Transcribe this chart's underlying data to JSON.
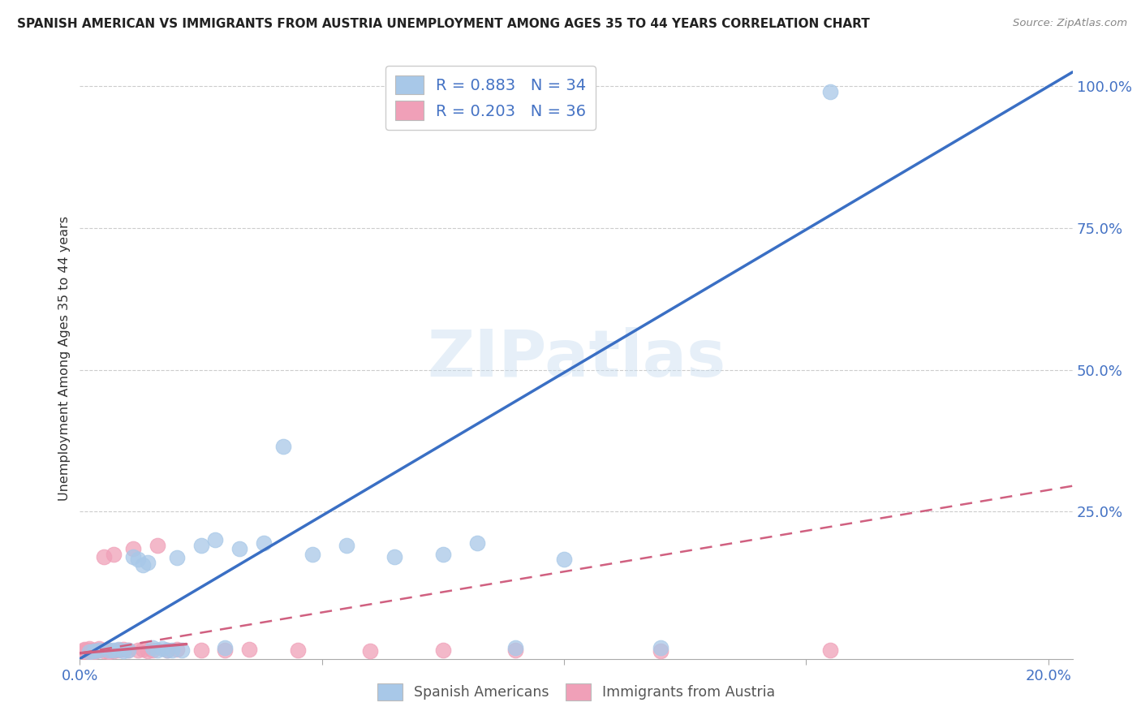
{
  "title": "SPANISH AMERICAN VS IMMIGRANTS FROM AUSTRIA UNEMPLOYMENT AMONG AGES 35 TO 44 YEARS CORRELATION CHART",
  "source": "Source: ZipAtlas.com",
  "ylabel": "Unemployment Among Ages 35 to 44 years",
  "legend_r1": "R = 0.883",
  "legend_n1": "N = 34",
  "legend_r2": "R = 0.203",
  "legend_n2": "N = 36",
  "color_blue": "#a8c8e8",
  "color_pink": "#f0a0b8",
  "color_blue_line": "#3a6fc4",
  "color_pink_line": "#d06080",
  "color_grid": "#cccccc",
  "color_axis_blue": "#4472c4",
  "color_ylabel": "#333333",
  "watermark": "ZIPatlas",
  "blue_scatter_x": [
    0.002,
    0.003,
    0.004,
    0.006,
    0.007,
    0.008,
    0.009,
    0.01,
    0.011,
    0.012,
    0.013,
    0.014,
    0.015,
    0.016,
    0.017,
    0.018,
    0.019,
    0.02,
    0.021,
    0.025,
    0.028,
    0.03,
    0.033,
    0.038,
    0.042,
    0.048,
    0.055,
    0.065,
    0.075,
    0.082,
    0.09,
    0.1,
    0.12,
    0.155
  ],
  "blue_scatter_y": [
    0.003,
    0.004,
    0.005,
    0.006,
    0.005,
    0.007,
    0.004,
    0.005,
    0.17,
    0.165,
    0.155,
    0.16,
    0.01,
    0.005,
    0.008,
    0.005,
    0.006,
    0.168,
    0.005,
    0.19,
    0.2,
    0.01,
    0.185,
    0.195,
    0.365,
    0.175,
    0.19,
    0.17,
    0.175,
    0.195,
    0.01,
    0.165,
    0.01,
    0.99
  ],
  "pink_scatter_x": [
    0.001,
    0.001,
    0.001,
    0.002,
    0.002,
    0.002,
    0.003,
    0.003,
    0.004,
    0.004,
    0.005,
    0.005,
    0.006,
    0.006,
    0.007,
    0.007,
    0.008,
    0.009,
    0.01,
    0.011,
    0.012,
    0.013,
    0.014,
    0.015,
    0.016,
    0.018,
    0.02,
    0.025,
    0.03,
    0.035,
    0.045,
    0.06,
    0.075,
    0.09,
    0.12,
    0.155
  ],
  "pink_scatter_y": [
    0.003,
    0.005,
    0.007,
    0.004,
    0.006,
    0.008,
    0.003,
    0.006,
    0.005,
    0.008,
    0.004,
    0.17,
    0.003,
    0.006,
    0.004,
    0.175,
    0.005,
    0.007,
    0.006,
    0.185,
    0.005,
    0.007,
    0.004,
    0.006,
    0.19,
    0.005,
    0.007,
    0.006,
    0.005,
    0.007,
    0.006,
    0.004,
    0.005,
    0.006,
    0.004,
    0.005
  ],
  "xlim": [
    0.0,
    0.205
  ],
  "ylim": [
    -0.01,
    1.05
  ],
  "blue_line_x": [
    -0.002,
    0.205
  ],
  "blue_line_y": [
    -0.02,
    1.025
  ],
  "pink_line_x": [
    0.0,
    0.205
  ],
  "pink_line_y": [
    0.0,
    0.295
  ],
  "yticks": [
    0.25,
    0.5,
    0.75,
    1.0
  ],
  "ytick_labels": [
    "25.0%",
    "50.0%",
    "75.0%",
    "100.0%"
  ],
  "xtick_labels_positions": [
    0.0,
    0.05,
    0.1,
    0.15,
    0.2
  ],
  "background_color": "#ffffff"
}
